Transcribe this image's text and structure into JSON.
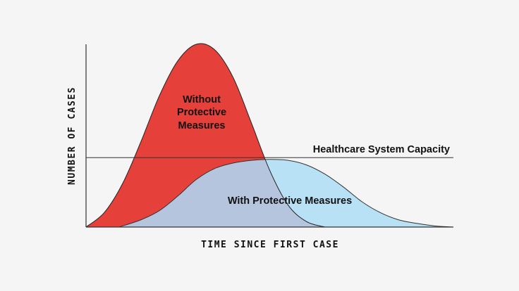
{
  "chart_data": {
    "type": "area",
    "title": "",
    "xlabel": "TIME SINCE FIRST CASE",
    "ylabel": "NUMBER OF CASES",
    "xlim": [
      0,
      100
    ],
    "ylim": [
      0,
      100
    ],
    "grid": false,
    "capacity": {
      "label": "Healthcare System Capacity",
      "y": 38
    },
    "series": [
      {
        "name": "Without Protective Measures",
        "label_lines": [
          "Without",
          "Protective",
          "Measures"
        ],
        "color": "#e5403a",
        "x": [
          0,
          5,
          10,
          15,
          20,
          25,
          30,
          35,
          40,
          45,
          50,
          55,
          60,
          65
        ],
        "y": [
          0,
          8,
          24,
          47,
          72,
          91,
          100,
          97,
          82,
          57,
          31,
          12,
          3,
          0
        ]
      },
      {
        "name": "With Protective Measures",
        "label_lines": [
          "With Protective Measures"
        ],
        "color": "#b9e1f6",
        "overlap_color": "#b6c5de",
        "x": [
          9,
          15,
          20,
          25,
          30,
          35,
          40,
          45,
          50,
          55,
          60,
          65,
          70,
          75,
          80,
          85,
          90,
          95,
          100
        ],
        "y": [
          0,
          4,
          9,
          17,
          26,
          32,
          35,
          36.5,
          37,
          36.5,
          34,
          29,
          22,
          14,
          8,
          4,
          2,
          0.6,
          0
        ]
      }
    ]
  }
}
